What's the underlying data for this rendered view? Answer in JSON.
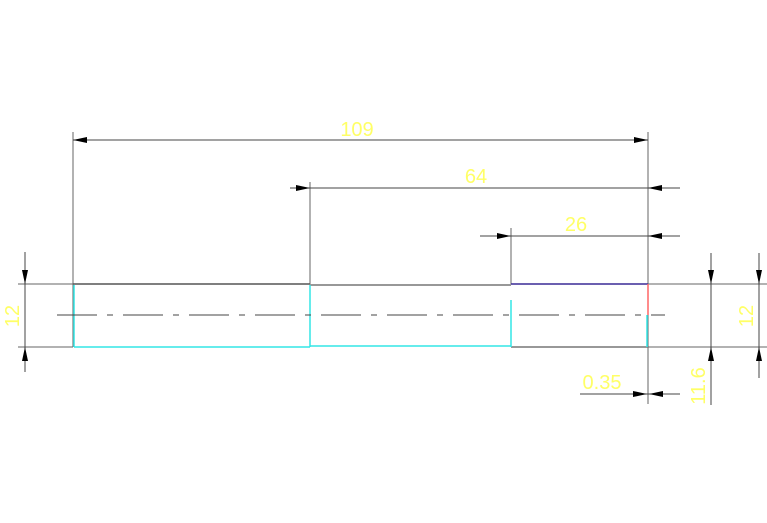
{
  "drawing": {
    "dimensions": {
      "overall_length": "109",
      "middle_length": "64",
      "right_length": "26",
      "left_diameter": "12",
      "right_diameter": "12",
      "inner_diameter": "11.6",
      "offset": "0.35"
    },
    "colors": {
      "background": "#ffffff",
      "dimension_line": "#555555",
      "dimension_text": "#ffff66",
      "cyan_edge": "#33e6e6",
      "purple_edge": "#3a2a96",
      "red_edge": "#ff6666",
      "outline": "#666666"
    }
  }
}
